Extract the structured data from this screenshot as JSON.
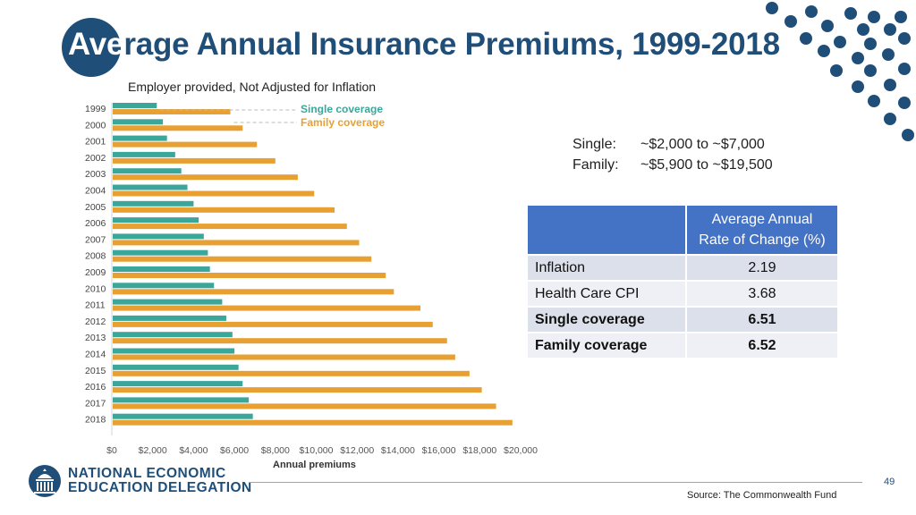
{
  "slide": {
    "title_lead": "Ave",
    "title_rest": "rage Annual Insurance Premiums, 1999-2018",
    "subtitle": "Employer provided, Not Adjusted for Inflation",
    "page_number": "49",
    "source": "Source: The Commonwealth Fund"
  },
  "ranges": [
    {
      "label": "Single:",
      "value": "~$2,000 to ~$7,000"
    },
    {
      "label": "Family:",
      "value": "~$5,900 to ~$19,500"
    }
  ],
  "rate_table": {
    "header_line1": "Average Annual",
    "header_line2": "Rate of Change (%)",
    "rows": [
      {
        "label": "Inflation",
        "value": "2.19"
      },
      {
        "label": "Health Care CPI",
        "value": "3.68"
      },
      {
        "label": "Single coverage",
        "value": "6.51"
      },
      {
        "label": "Family coverage",
        "value": "6.52"
      }
    ]
  },
  "logo": {
    "line1": "NATIONAL ECONOMIC",
    "line2": "EDUCATION DELEGATION",
    "icon": "capitol-building-icon"
  },
  "colors": {
    "brand": "#1f4e79",
    "single": "#3aa79a",
    "family": "#e8a033",
    "table_header": "#4472c4"
  },
  "chart_data": {
    "type": "bar",
    "orientation": "horizontal",
    "title": "",
    "xlabel": "Annual premiums",
    "ylabel": "",
    "xlim": [
      0,
      20000
    ],
    "categories": [
      "1999",
      "2000",
      "2001",
      "2002",
      "2003",
      "2004",
      "2005",
      "2006",
      "2007",
      "2008",
      "2009",
      "2010",
      "2011",
      "2012",
      "2013",
      "2014",
      "2015",
      "2016",
      "2017",
      "2018"
    ],
    "x_ticks": [
      "$0",
      "$2,000",
      "$4,000",
      "$6,000",
      "$8,000",
      "$10,000",
      "$12,000",
      "$14,000",
      "$16,000",
      "$18,000",
      "$20,000"
    ],
    "series": [
      {
        "name": "Single coverage",
        "color": "#3aa79a",
        "values": [
          2200,
          2500,
          2700,
          3100,
          3400,
          3700,
          4000,
          4250,
          4500,
          4700,
          4800,
          5000,
          5400,
          5600,
          5900,
          6000,
          6200,
          6400,
          6700,
          6900
        ]
      },
      {
        "name": "Family coverage",
        "color": "#e8a033",
        "values": [
          5800,
          6400,
          7100,
          8000,
          9100,
          9900,
          10900,
          11500,
          12100,
          12700,
          13400,
          13800,
          15100,
          15700,
          16400,
          16800,
          17500,
          18100,
          18800,
          19600
        ]
      }
    ],
    "legend_position": "top-right"
  }
}
